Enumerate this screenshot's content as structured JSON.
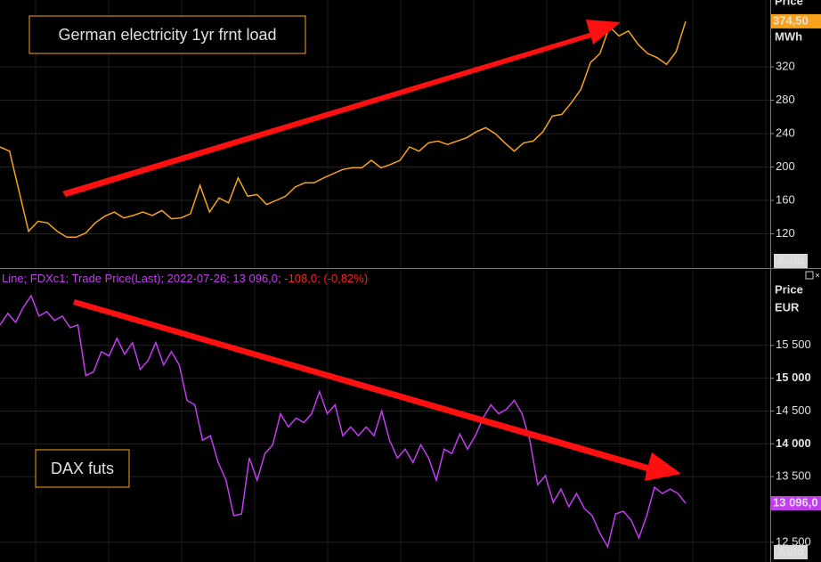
{
  "chart_data": [
    {
      "type": "line",
      "title": "German electricity 1yr frnt load",
      "axis_title": "Price",
      "axis_unit": "MWh",
      "color": "#f7a21b",
      "values": [
        224,
        219,
        171,
        123,
        135,
        133,
        123,
        116,
        116,
        121,
        133,
        141,
        146,
        139,
        142,
        146,
        142,
        148,
        138,
        139,
        144,
        178,
        146,
        163,
        157,
        187,
        165,
        167,
        155,
        160,
        165,
        176,
        181,
        181,
        187,
        192,
        197,
        199,
        199,
        208,
        199,
        203,
        208,
        224,
        219,
        229,
        231,
        227,
        231,
        235,
        242,
        247,
        240,
        229,
        219,
        229,
        231,
        242,
        261,
        263,
        277,
        293,
        325,
        336,
        368,
        357,
        363,
        347,
        336,
        331,
        323,
        338,
        374.5
      ],
      "last_label": "374,50",
      "ylim": [
        80,
        400
      ],
      "yticks": [
        120,
        160,
        200,
        240,
        280,
        320
      ],
      "grid": true,
      "button": "Auto"
    },
    {
      "type": "line",
      "title": "DAX futs",
      "axis_title": "Price",
      "axis_unit": "EUR",
      "color": "#c43cf0",
      "header": [
        {
          "text": "Line; FDXc1; Trade Price(Last); 2022-07-26; 13 096,0; ",
          "color": "#c43cf0"
        },
        {
          "text": "-108,0; (-0,82%)",
          "color": "#ff2020"
        }
      ],
      "values": [
        15811,
        15986,
        15851,
        16081,
        16257,
        15946,
        16014,
        15878,
        15946,
        15770,
        15811,
        15041,
        15095,
        15405,
        15338,
        15608,
        15365,
        15541,
        15135,
        15270,
        15541,
        15203,
        15405,
        15203,
        14662,
        14595,
        14054,
        14122,
        13716,
        13446,
        12905,
        12932,
        13784,
        13446,
        13851,
        13986,
        14459,
        14257,
        14392,
        14324,
        14459,
        14797,
        14459,
        14595,
        14122,
        14257,
        14122,
        14257,
        14122,
        14500,
        14054,
        13784,
        13919,
        13716,
        13986,
        13784,
        13446,
        13919,
        13851,
        14149,
        13919,
        14122,
        14392,
        14595,
        14459,
        14527,
        14662,
        14459,
        14054,
        13378,
        13514,
        13108,
        13311,
        13041,
        13243,
        13014,
        12905,
        12635,
        12432,
        12932,
        12973,
        12838,
        12568,
        12905,
        13338,
        13243,
        13311,
        13243,
        13096
      ],
      "last_label": "13 096,0",
      "ylim": [
        12200,
        16650
      ],
      "yticks": [
        {
          "value": 15500,
          "label": "15 500"
        },
        {
          "value": 15000,
          "label": "15 000"
        },
        {
          "value": 14500,
          "label": "14 500"
        },
        {
          "value": 14000,
          "label": "14 000"
        },
        {
          "value": 13500,
          "label": "13 500"
        },
        {
          "value": 12500,
          "label": "12 500"
        }
      ],
      "grid": true,
      "button": "Auto"
    }
  ]
}
